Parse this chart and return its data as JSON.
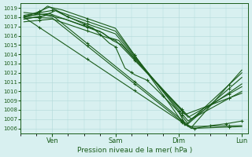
{
  "title": "",
  "xlabel": "Pression niveau de la mer( hPa )",
  "background_color": "#d8f0f0",
  "grid_color": "#b0d8d8",
  "line_color": "#1a5c1a",
  "ylim": [
    1005.5,
    1019.5
  ],
  "yticks": [
    1006,
    1007,
    1008,
    1009,
    1010,
    1011,
    1012,
    1013,
    1014,
    1015,
    1016,
    1017,
    1018,
    1019
  ],
  "xlim": [
    0.0,
    7.2
  ],
  "xtick_positions": [
    1,
    3,
    5,
    7
  ],
  "xtick_labels": [
    "Ven",
    "Sam",
    "Dim",
    "Lun"
  ],
  "line_width": 0.8,
  "marker": "+",
  "marker_size": 3.5
}
